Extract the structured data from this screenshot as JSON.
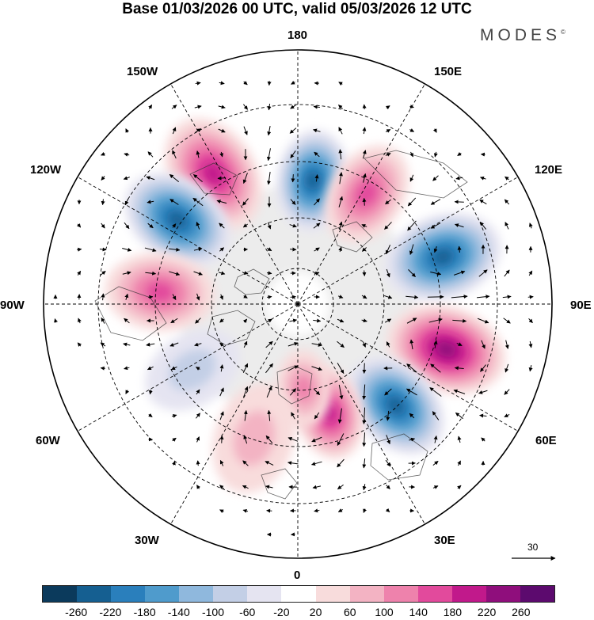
{
  "title": "Base 01/03/2026 00 UTC, valid 05/03/2026 12 UTC",
  "brand": "MODES",
  "brand_mark": "©",
  "longitude_labels": {
    "n180": "180",
    "n150e": "150E",
    "n120e": "120E",
    "n90e": "90E",
    "n60e": "60E",
    "n30e": "30E",
    "n0": "0",
    "n30w": "30W",
    "n60w": "60W",
    "n90w": "90W",
    "n120w": "120W",
    "n150w": "150W"
  },
  "vector_scale": {
    "label": "30"
  },
  "colorbar": {
    "colors": [
      "#0b3a5c",
      "#155f91",
      "#2a7fbc",
      "#4f9bcc",
      "#8fb8dd",
      "#c3cfe6",
      "#e5e4f1",
      "#ffffff",
      "#f8dcdc",
      "#f3b3c3",
      "#ee82ac",
      "#e24a9c",
      "#c1198b",
      "#8f0e7c",
      "#5c0a6e"
    ],
    "ticks": [
      "-260",
      "-220",
      "-180",
      "-140",
      "-100",
      "-60",
      "-20",
      "20",
      "60",
      "100",
      "140",
      "180",
      "220",
      "260"
    ]
  },
  "anomaly_centers": [
    {
      "lon_deg": 173,
      "colat_deg": 44,
      "value": -200
    },
    {
      "lon_deg": 148,
      "colat_deg": 46,
      "value": 140
    },
    {
      "lon_deg": 108,
      "colat_deg": 54,
      "value": -210
    },
    {
      "lon_deg": 73,
      "colat_deg": 55,
      "value": 230
    },
    {
      "lon_deg": 44,
      "colat_deg": 50,
      "value": -200
    },
    {
      "lon_deg": 16,
      "colat_deg": 40,
      "value": 180
    },
    {
      "lon_deg": 4,
      "colat_deg": 30,
      "value": 110
    },
    {
      "lon_deg": -147,
      "colat_deg": 55,
      "value": 190
    },
    {
      "lon_deg": -125,
      "colat_deg": 52,
      "value": -200
    },
    {
      "lon_deg": -95,
      "colat_deg": 49,
      "value": 150
    },
    {
      "lon_deg": -58,
      "colat_deg": 44,
      "value": -60
    },
    {
      "lon_deg": -18,
      "colat_deg": 50,
      "value": 60
    }
  ]
}
